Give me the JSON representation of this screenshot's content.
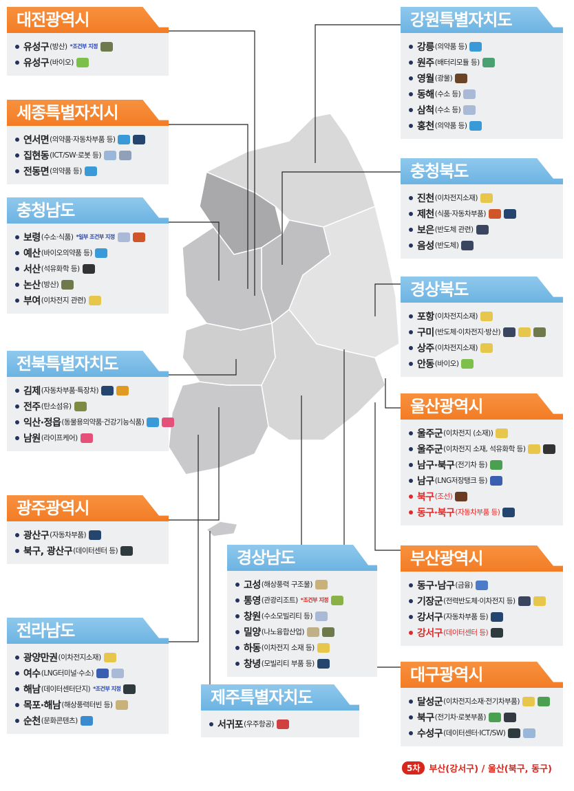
{
  "icon_colors": {
    "tank-icon": "#6e7a4c",
    "bio-icon": "#7cc04a",
    "medicine-icon": "#3a9ad8",
    "car-icon": "#24456e",
    "ict-icon": "#9ab6d8",
    "robot-icon": "#8fa0b8",
    "hydrogen-icon": "#a9b9d6",
    "food-icon": "#d0562a",
    "petrochem-icon": "#333333",
    "battery-icon": "#e6c74c",
    "truck-icon": "#e09a22",
    "carbon-fiber-icon": "#7d8a44",
    "healthcare-icon": "#e5507a",
    "datacenter-icon": "#2e3a3e",
    "lng-icon": "#3b5fb0",
    "wind-icon": "#c9b27a",
    "tv-icon": "#3a8ad0",
    "module-icon": "#4aa070",
    "mining-icon": "#6b4326",
    "chip-icon": "#3a4660",
    "ev-icon": "#4aa050",
    "ship-icon": "#6a3a22",
    "finance-icon": "#4a7ac8",
    "resort-icon": "#8ab048",
    "nano-icon": "#c0b088",
    "rocket-icon": "#d04040",
    "robot-arm-icon": "#333a44"
  },
  "panels": [
    {
      "id": "daejeon",
      "title": "대전광역시",
      "color": "orange",
      "items": [
        {
          "name": "유성구",
          "detail": "(방산)",
          "note": "*조건부 지정",
          "icons": [
            "tank-icon"
          ]
        },
        {
          "name": "유성구",
          "detail": "(바이오)",
          "icons": [
            "bio-icon"
          ]
        }
      ]
    },
    {
      "id": "sejong",
      "title": "세종특별자치시",
      "color": "orange",
      "items": [
        {
          "name": "연서면",
          "detail": "(의약품·자동차부품 등)",
          "icons": [
            "medicine-icon",
            "car-icon"
          ]
        },
        {
          "name": "집현동",
          "detail": "(ICT/SW·로봇 등)",
          "icons": [
            "ict-icon",
            "robot-icon"
          ]
        },
        {
          "name": "전동면",
          "detail": "(의약품 등)",
          "icons": [
            "medicine-icon"
          ]
        }
      ]
    },
    {
      "id": "chungnam",
      "title": "충청남도",
      "color": "blue",
      "items": [
        {
          "name": "보령",
          "detail": "(수소·식품)",
          "note": "*일부 조건부 지정",
          "icons": [
            "hydrogen-icon",
            "food-icon"
          ]
        },
        {
          "name": "예산",
          "detail": "(바이오의약품 등)",
          "icons": [
            "medicine-icon"
          ]
        },
        {
          "name": "서산",
          "detail": "(석유화학 등)",
          "icons": [
            "petrochem-icon"
          ]
        },
        {
          "name": "논산",
          "detail": "(방산)",
          "icons": [
            "tank-icon"
          ]
        },
        {
          "name": "부여",
          "detail": "(이차전지 관련)",
          "icons": [
            "battery-icon"
          ]
        }
      ]
    },
    {
      "id": "jeonbuk",
      "title": "전북특별자치도",
      "color": "blue",
      "items": [
        {
          "name": "김제",
          "detail": "(자동차부품·특장차)",
          "icons": [
            "car-icon",
            "truck-icon"
          ]
        },
        {
          "name": "전주",
          "detail": "(탄소섬유)",
          "icons": [
            "carbon-fiber-icon"
          ]
        },
        {
          "name": "익산·정읍",
          "detail": "(동물용의약품·건강기능식품)",
          "icons": [
            "medicine-icon",
            "healthcare-icon"
          ]
        },
        {
          "name": "남원",
          "detail": "(라이프케어)",
          "icons": [
            "healthcare-icon"
          ]
        }
      ]
    },
    {
      "id": "gwangju",
      "title": "광주광역시",
      "color": "orange",
      "items": [
        {
          "name": "광산구",
          "detail": "(자동차부품)",
          "icons": [
            "car-icon"
          ]
        },
        {
          "name": "북구, 광산구",
          "detail": "(데이터센터 등)",
          "icons": [
            "datacenter-icon"
          ]
        }
      ]
    },
    {
      "id": "jeonnam",
      "title": "전라남도",
      "color": "blue",
      "items": [
        {
          "name": "광양만권",
          "detail": "(이차전지소재)",
          "icons": [
            "battery-icon"
          ]
        },
        {
          "name": "여수",
          "detail": "(LNG터미널·수소)",
          "icons": [
            "lng-icon",
            "hydrogen-icon"
          ]
        },
        {
          "name": "해남",
          "detail": "(데이터센터단지)",
          "note": "*조건부 지정",
          "icons": [
            "datacenter-icon"
          ]
        },
        {
          "name": "목포·해남",
          "detail": "(해상풍력터빈 등)",
          "icons": [
            "wind-icon"
          ]
        },
        {
          "name": "순천",
          "detail": "(문화콘텐츠)",
          "icons": [
            "tv-icon"
          ]
        }
      ]
    },
    {
      "id": "gangwon",
      "title": "강원특별자치도",
      "color": "blue",
      "items": [
        {
          "name": "강릉",
          "detail": "(의약품 등)",
          "icons": [
            "medicine-icon"
          ]
        },
        {
          "name": "원주",
          "detail": "(배터리모듈 등)",
          "icons": [
            "module-icon"
          ]
        },
        {
          "name": "영월",
          "detail": "(광물)",
          "icons": [
            "mining-icon"
          ]
        },
        {
          "name": "동해",
          "detail": "(수소 등)",
          "icons": [
            "hydrogen-icon"
          ]
        },
        {
          "name": "삼척",
          "detail": "(수소 등)",
          "icons": [
            "hydrogen-icon"
          ]
        },
        {
          "name": "홍천",
          "detail": "(의약품 등)",
          "icons": [
            "medicine-icon"
          ]
        }
      ]
    },
    {
      "id": "chungbuk",
      "title": "충청북도",
      "color": "blue",
      "items": [
        {
          "name": "진천",
          "detail": "(이차전지소재)",
          "icons": [
            "battery-icon"
          ]
        },
        {
          "name": "제천",
          "detail": "(식품·자동차부품)",
          "icons": [
            "food-icon",
            "car-icon"
          ]
        },
        {
          "name": "보은",
          "detail": "(반도체 관련)",
          "icons": [
            "chip-icon"
          ]
        },
        {
          "name": "음성",
          "detail": "(반도체)",
          "icons": [
            "chip-icon"
          ]
        }
      ]
    },
    {
      "id": "gyeongbuk",
      "title": "경상북도",
      "color": "blue",
      "items": [
        {
          "name": "포항",
          "detail": "(이차전지소재)",
          "icons": [
            "battery-icon"
          ]
        },
        {
          "name": "구미",
          "detail": "(반도체·이차전지·방산)",
          "icons": [
            "chip-icon",
            "battery-icon",
            "tank-icon"
          ]
        },
        {
          "name": "상주",
          "detail": "(이차전지소재)",
          "icons": [
            "battery-icon"
          ]
        },
        {
          "name": "안동",
          "detail": "(바이오)",
          "icons": [
            "bio-icon"
          ]
        }
      ]
    },
    {
      "id": "ulsan",
      "title": "울산광역시",
      "color": "orange",
      "items": [
        {
          "name": "울주군",
          "detail": "(이차전지 (소재))",
          "icons": [
            "battery-icon"
          ]
        },
        {
          "name": "울주군",
          "detail": "(이차전지 소재, 석유화학 등)",
          "icons": [
            "battery-icon",
            "petrochem-icon"
          ]
        },
        {
          "name": "남구·북구",
          "detail": "(전기차 등)",
          "icons": [
            "ev-icon"
          ]
        },
        {
          "name": "남구",
          "detail": "(LNG저장탱크 등)",
          "icons": [
            "lng-icon"
          ]
        },
        {
          "name": "북구",
          "detail": " (조선)",
          "red": true,
          "icons": [
            "ship-icon"
          ]
        },
        {
          "name": "동구·북구",
          "detail": " (자동차부품 등)",
          "red": true,
          "icons": [
            "car-icon"
          ]
        }
      ]
    },
    {
      "id": "busan",
      "title": "부산광역시",
      "color": "orange",
      "items": [
        {
          "name": "동구·남구",
          "detail": "(금융)",
          "icons": [
            "finance-icon"
          ]
        },
        {
          "name": "기장군",
          "detail": "(전력반도체·이차전지 등)",
          "icons": [
            "chip-icon",
            "battery-icon"
          ]
        },
        {
          "name": "강서구",
          "detail": "(자동차부품 등)",
          "icons": [
            "car-icon"
          ]
        },
        {
          "name": "강서구",
          "detail": "(데이터센터 등)",
          "red": true,
          "icons": [
            "datacenter-icon"
          ]
        }
      ]
    },
    {
      "id": "daegu",
      "title": "대구광역시",
      "color": "orange",
      "items": [
        {
          "name": "달성군",
          "detail": "(이차전지소재·전기차부품)",
          "icons": [
            "battery-icon",
            "ev-icon"
          ]
        },
        {
          "name": "북구",
          "detail": "(전기차·로봇부품)",
          "icons": [
            "ev-icon",
            "robot-arm-icon"
          ]
        },
        {
          "name": "수성구",
          "detail": "(데이터센터·ICT/SW)",
          "icons": [
            "datacenter-icon",
            "ict-icon"
          ]
        }
      ]
    },
    {
      "id": "gyeongnam",
      "title": "경상남도",
      "color": "blue",
      "items": [
        {
          "name": "고성",
          "detail": "(해상풍력 구조물)",
          "icons": [
            "wind-icon"
          ]
        },
        {
          "name": "통영",
          "detail": "(관광리조트)",
          "note": "*조건부 지정",
          "note_red": true,
          "icons": [
            "resort-icon"
          ]
        },
        {
          "name": "창원",
          "detail": "(수소모빌리티 등)",
          "icons": [
            "hydrogen-icon"
          ]
        },
        {
          "name": "밀양",
          "detail": "(나노융합산업)",
          "icons": [
            "nano-icon",
            "tank-icon"
          ]
        },
        {
          "name": "하동",
          "detail": "(이차전지 소재 등)",
          "icons": [
            "battery-icon"
          ]
        },
        {
          "name": "창녕",
          "detail": "(모빌리티 부품 등)",
          "icons": [
            "car-icon"
          ]
        }
      ]
    },
    {
      "id": "jeju",
      "title": "제주특별자치도",
      "color": "blue",
      "items": [
        {
          "name": "서귀포",
          "detail": "(우주항공)",
          "icons": [
            "rocket-icon"
          ]
        }
      ]
    }
  ],
  "footer": {
    "badge": "5차",
    "text": "부산(강서구) / 울산(북구, 동구)"
  }
}
